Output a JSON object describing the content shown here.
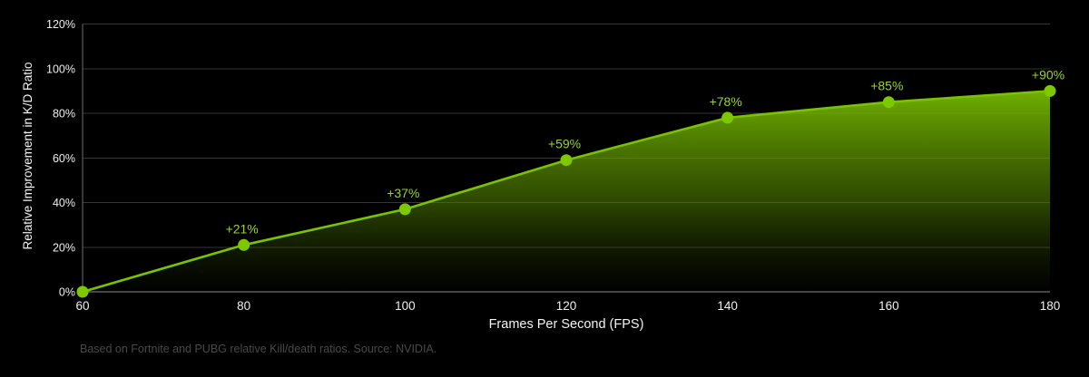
{
  "chart_data": {
    "type": "area",
    "title": "",
    "x": [
      60,
      80,
      100,
      120,
      140,
      160,
      180
    ],
    "values": [
      0,
      21,
      37,
      59,
      78,
      85,
      90
    ],
    "point_labels": [
      "",
      "+21%",
      "+37%",
      "+59%",
      "+78%",
      "+85%",
      "+90%"
    ],
    "x_tick_labels": [
      "60",
      "80",
      "100",
      "120",
      "140",
      "160",
      "180"
    ],
    "y_tick_values": [
      0,
      20,
      40,
      60,
      80,
      100,
      120
    ],
    "y_tick_labels": [
      "0%",
      "20%",
      "40%",
      "60%",
      "80%",
      "100%",
      "120%"
    ],
    "xlabel": "Frames Per Second (FPS)",
    "ylabel": "Relative Improvement in K/D Ratio",
    "xlim": [
      60,
      180
    ],
    "ylim": [
      0,
      120
    ],
    "grid": "horizontal",
    "legend": "none",
    "footnote": "Based on Fortnite and PUBG relative Kill/death ratios. Source: NVIDIA.",
    "colors": {
      "background": "#000000",
      "line": "#7bc200",
      "marker": "#7ec800",
      "point_label": "#9cd42c",
      "area_top": "#76b900",
      "gridline": "#353535",
      "axis_line": "#8c8c8c",
      "left_axis_line": "#6e6e6e",
      "tick_text": "#efefef",
      "axis_title_text": "#f5f5f5",
      "footnote_text": "#4a4a4a"
    }
  }
}
